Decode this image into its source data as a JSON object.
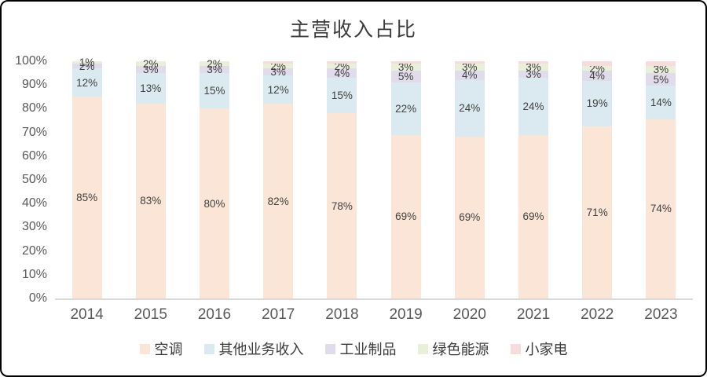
{
  "chart_data": {
    "type": "bar",
    "stacked": true,
    "title": "主营收入占比",
    "categories": [
      "2014",
      "2015",
      "2016",
      "2017",
      "2018",
      "2019",
      "2020",
      "2021",
      "2022",
      "2023"
    ],
    "series": [
      {
        "name": "空调",
        "color": "#FBE5D6",
        "values": [
          85,
          83,
          80,
          82,
          78,
          69,
          69,
          69,
          71,
          74
        ],
        "labels": [
          "85%",
          "83%",
          "80%",
          "82%",
          "78%",
          "69%",
          "69%",
          "69%",
          "71%",
          "74%"
        ]
      },
      {
        "name": "其他业务收入",
        "color": "#DBE9F0",
        "values": [
          12,
          13,
          15,
          12,
          15,
          22,
          24,
          24,
          19,
          14
        ],
        "labels": [
          "12%",
          "13%",
          "15%",
          "12%",
          "15%",
          "22%",
          "24%",
          "24%",
          "19%",
          "14%"
        ]
      },
      {
        "name": "工业制品",
        "color": "#E0DCEC",
        "values": [
          2,
          3,
          3,
          3,
          4,
          5,
          4,
          3,
          4,
          5
        ],
        "labels": [
          "2%",
          "3%",
          "3%",
          "3%",
          "4%",
          "5%",
          "4%",
          "3%",
          "4%",
          "5%"
        ]
      },
      {
        "name": "绿色能源",
        "color": "#EAEFDA",
        "values": [
          1,
          2,
          2,
          2,
          2,
          3,
          3,
          3,
          2,
          3
        ],
        "labels": [
          "1%",
          "2%",
          "2%",
          "2%",
          "2%",
          "3%",
          "3%",
          "3%",
          "2%",
          "3%"
        ]
      },
      {
        "name": "小家电",
        "color": "#F6DDDC",
        "values": [
          0,
          0,
          0,
          1,
          1,
          1,
          1,
          1,
          2,
          2
        ],
        "labels": [
          "",
          "",
          "",
          "",
          "",
          "",
          "",
          "",
          "",
          ""
        ]
      }
    ],
    "yticks": [
      "0%",
      "10%",
      "20%",
      "30%",
      "40%",
      "50%",
      "60%",
      "70%",
      "80%",
      "90%",
      "100%"
    ],
    "ylim": [
      0,
      100
    ],
    "grid": false,
    "legend_position": "bottom",
    "axis_line_color": "#d9d9d9",
    "text_colors": {
      "title": "#3c3c3c",
      "axis": "#595959",
      "bar_label": "#404040"
    }
  }
}
